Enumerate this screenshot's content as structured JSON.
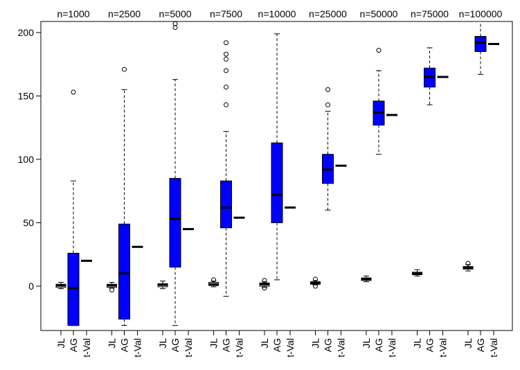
{
  "chart_data": {
    "type": "boxplot",
    "ylim": [
      -31,
      209
    ],
    "yticks": [
      0,
      50,
      100,
      150,
      200
    ],
    "grid": false,
    "colors": {
      "box_fill": "#0000ff",
      "box_stroke": "#000000",
      "outlier_stroke": "#000000"
    },
    "groups": [
      {
        "label": "n=1000",
        "x_labels": [
          "JL",
          "AG",
          "t-Val"
        ],
        "jl": {
          "whisker_low": -2,
          "q1": -1,
          "median": 0.5,
          "q3": 1.5,
          "whisker_high": 3,
          "outliers": []
        },
        "ag": {
          "whisker_low": -31,
          "q1": -31,
          "median": -1.5,
          "q3": 26,
          "whisker_high": 83,
          "outliers": [
            153
          ]
        },
        "tval": 20
      },
      {
        "label": "n=2500",
        "x_labels": [
          "JL",
          "AG",
          "t-Val"
        ],
        "jl": {
          "whisker_low": -1.5,
          "q1": -1,
          "median": 0.5,
          "q3": 1.5,
          "whisker_high": 3,
          "outliers": [
            -3
          ]
        },
        "ag": {
          "whisker_low": -31,
          "q1": -26,
          "median": 10,
          "q3": 49,
          "whisker_high": 155,
          "outliers": [
            171
          ]
        },
        "tval": 31
      },
      {
        "label": "n=5000",
        "x_labels": [
          "JL",
          "AG",
          "t-Val"
        ],
        "jl": {
          "whisker_low": -2,
          "q1": -0.5,
          "median": 1,
          "q3": 2,
          "whisker_high": 4,
          "outliers": []
        },
        "ag": {
          "whisker_low": -31,
          "q1": 15,
          "median": 53,
          "q3": 85,
          "whisker_high": 163,
          "outliers": [
            204,
            207
          ]
        },
        "tval": 45
      },
      {
        "label": "n=7500",
        "x_labels": [
          "JL",
          "AG",
          "t-Val"
        ],
        "jl": {
          "whisker_low": -0.5,
          "q1": 0.5,
          "median": 1.5,
          "q3": 3,
          "whisker_high": 4,
          "outliers": [
            5
          ]
        },
        "ag": {
          "whisker_low": -8,
          "q1": 46,
          "median": 62,
          "q3": 83,
          "whisker_high": 122,
          "outliers": [
            143,
            157,
            170,
            179,
            183,
            192
          ]
        },
        "tval": 54
      },
      {
        "label": "n=10000",
        "x_labels": [
          "JL",
          "AG",
          "t-Val"
        ],
        "jl": {
          "whisker_low": -1,
          "q1": 0,
          "median": 1.5,
          "q3": 2.5,
          "whisker_high": 3.5,
          "outliers": [
            -1.5,
            4.5
          ]
        },
        "ag": {
          "whisker_low": 5,
          "q1": 50,
          "median": 72,
          "q3": 113,
          "whisker_high": 199,
          "outliers": []
        },
        "tval": 62
      },
      {
        "label": "n=25000",
        "x_labels": [
          "JL",
          "AG",
          "t-Val"
        ],
        "jl": {
          "whisker_low": 1,
          "q1": 1.5,
          "median": 2.5,
          "q3": 3.5,
          "whisker_high": 4.5,
          "outliers": [
            0,
            5.5
          ]
        },
        "ag": {
          "whisker_low": 60,
          "q1": 81,
          "median": 92,
          "q3": 104,
          "whisker_high": 138,
          "outliers": [
            143,
            155
          ]
        },
        "tval": 95
      },
      {
        "label": "n=50000",
        "x_labels": [
          "JL",
          "AG",
          "t-Val"
        ],
        "jl": {
          "whisker_low": 3.5,
          "q1": 4.5,
          "median": 5.5,
          "q3": 6.5,
          "whisker_high": 8,
          "outliers": []
        },
        "ag": {
          "whisker_low": 104,
          "q1": 127,
          "median": 137,
          "q3": 146,
          "whisker_high": 170,
          "outliers": [
            186
          ]
        },
        "tval": 135
      },
      {
        "label": "n=75000",
        "x_labels": [
          "JL",
          "AG",
          "t-Val"
        ],
        "jl": {
          "whisker_low": 8,
          "q1": 9,
          "median": 10,
          "q3": 11,
          "whisker_high": 13,
          "outliers": []
        },
        "ag": {
          "whisker_low": 143,
          "q1": 157,
          "median": 165,
          "q3": 172,
          "whisker_high": 188,
          "outliers": []
        },
        "tval": 165
      },
      {
        "label": "n=100000",
        "x_labels": [
          "JL",
          "AG",
          "t-Val"
        ],
        "jl": {
          "whisker_low": 12,
          "q1": 13.5,
          "median": 14.5,
          "q3": 15.5,
          "whisker_high": 17,
          "outliers": [
            18
          ]
        },
        "ag": {
          "whisker_low": 167,
          "q1": 185,
          "median": 192,
          "q3": 197,
          "whisker_high": 209,
          "outliers": []
        },
        "tval": 191
      }
    ]
  }
}
